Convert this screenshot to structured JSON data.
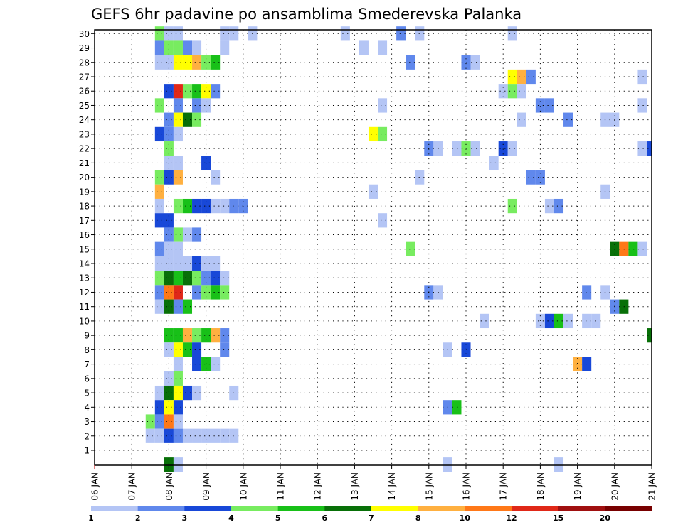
{
  "chart_data": {
    "type": "heatmap",
    "title": "GEFS 6hr padavine po ansamblima Smederevska Palanka",
    "x_tick_labels": [
      "06 JAN",
      "07 JAN",
      "08 JAN",
      "09 JAN",
      "10 JAN",
      "11 JAN",
      "12 JAN",
      "13 JAN",
      "14 JAN",
      "15 JAN",
      "16 JAN",
      "17 JAN",
      "18 JAN",
      "19 JAN",
      "20 JAN",
      "21 JAN"
    ],
    "y_tick_labels": [
      "1",
      "2",
      "3",
      "4",
      "5",
      "6",
      "7",
      "8",
      "9",
      "10",
      "11",
      "12",
      "13",
      "14",
      "15",
      "16",
      "17",
      "18",
      "19",
      "20",
      "21",
      "22",
      "23",
      "24",
      "25",
      "26",
      "27",
      "28",
      "29",
      "30"
    ],
    "ylim": [
      0,
      30
    ],
    "xlim_steps": [
      0,
      60
    ],
    "step_hours": 6,
    "grid": "dotted",
    "colorbar": {
      "labels": [
        "1",
        "2",
        "3",
        "4",
        "5",
        "6",
        "7",
        "8",
        "10",
        "12",
        "15",
        "20"
      ],
      "colors": [
        "#b4c5f5",
        "#6088ec",
        "#1848d8",
        "#78ec60",
        "#18c018",
        "#087008",
        "#ffff00",
        "#ffb040",
        "#ff7818",
        "#e02818",
        "#a01010",
        "#780000"
      ]
    },
    "cells": [
      [
        8,
        30,
        1
      ],
      [
        9,
        30,
        1
      ],
      [
        7,
        30,
        4
      ],
      [
        14,
        30,
        1
      ],
      [
        15,
        30,
        1
      ],
      [
        17,
        30,
        1
      ],
      [
        27,
        30,
        1
      ],
      [
        33,
        30,
        2
      ],
      [
        35,
        30,
        1
      ],
      [
        45,
        30,
        1
      ],
      [
        7,
        29,
        2
      ],
      [
        8,
        29,
        4
      ],
      [
        9,
        29,
        4
      ],
      [
        10,
        29,
        2
      ],
      [
        11,
        29,
        1
      ],
      [
        14,
        29,
        1
      ],
      [
        29,
        29,
        1
      ],
      [
        31,
        29,
        1
      ],
      [
        7,
        28,
        1
      ],
      [
        8,
        28,
        1
      ],
      [
        9,
        28,
        7
      ],
      [
        10,
        28,
        7
      ],
      [
        11,
        28,
        8
      ],
      [
        12,
        28,
        4
      ],
      [
        13,
        28,
        5
      ],
      [
        34,
        28,
        2
      ],
      [
        40,
        28,
        2
      ],
      [
        41,
        28,
        1
      ],
      [
        45,
        27,
        7
      ],
      [
        46,
        27,
        8
      ],
      [
        47,
        27,
        2
      ],
      [
        59,
        27,
        1
      ],
      [
        8,
        26,
        3
      ],
      [
        9,
        26,
        10
      ],
      [
        10,
        26,
        4
      ],
      [
        11,
        26,
        5
      ],
      [
        12,
        26,
        7
      ],
      [
        13,
        26,
        2
      ],
      [
        44,
        26,
        1
      ],
      [
        45,
        26,
        4
      ],
      [
        46,
        26,
        1
      ],
      [
        7,
        25,
        4
      ],
      [
        9,
        25,
        2
      ],
      [
        11,
        25,
        2
      ],
      [
        12,
        25,
        1
      ],
      [
        31,
        25,
        1
      ],
      [
        48,
        25,
        2
      ],
      [
        49,
        25,
        2
      ],
      [
        59,
        25,
        1
      ],
      [
        8,
        24,
        2
      ],
      [
        9,
        24,
        7
      ],
      [
        10,
        24,
        6
      ],
      [
        11,
        24,
        4
      ],
      [
        46,
        24,
        1
      ],
      [
        51,
        24,
        2
      ],
      [
        55,
        24,
        1
      ],
      [
        56,
        24,
        1
      ],
      [
        7,
        23,
        3
      ],
      [
        8,
        23,
        2
      ],
      [
        9,
        23,
        1
      ],
      [
        30,
        23,
        7
      ],
      [
        31,
        23,
        4
      ],
      [
        8,
        22,
        4
      ],
      [
        36,
        22,
        2
      ],
      [
        37,
        22,
        1
      ],
      [
        39,
        22,
        1
      ],
      [
        40,
        22,
        4
      ],
      [
        41,
        22,
        1
      ],
      [
        44,
        22,
        3
      ],
      [
        45,
        22,
        1
      ],
      [
        59,
        22,
        1
      ],
      [
        60,
        22,
        3
      ],
      [
        8,
        21,
        1
      ],
      [
        9,
        21,
        1
      ],
      [
        12,
        21,
        3
      ],
      [
        43,
        21,
        1
      ],
      [
        7,
        20,
        4
      ],
      [
        8,
        20,
        3
      ],
      [
        9,
        20,
        8
      ],
      [
        13,
        20,
        1
      ],
      [
        35,
        20,
        1
      ],
      [
        47,
        20,
        2
      ],
      [
        48,
        20,
        2
      ],
      [
        7,
        19,
        8
      ],
      [
        30,
        19,
        1
      ],
      [
        55,
        19,
        1
      ],
      [
        7,
        18,
        1
      ],
      [
        9,
        18,
        4
      ],
      [
        10,
        18,
        5
      ],
      [
        11,
        18,
        3
      ],
      [
        12,
        18,
        3
      ],
      [
        13,
        18,
        1
      ],
      [
        14,
        18,
        1
      ],
      [
        15,
        18,
        2
      ],
      [
        16,
        18,
        2
      ],
      [
        45,
        18,
        4
      ],
      [
        49,
        18,
        1
      ],
      [
        50,
        18,
        2
      ],
      [
        7,
        17,
        3
      ],
      [
        8,
        17,
        3
      ],
      [
        31,
        17,
        1
      ],
      [
        8,
        16,
        2
      ],
      [
        9,
        16,
        4
      ],
      [
        10,
        16,
        1
      ],
      [
        11,
        16,
        2
      ],
      [
        7,
        15,
        2
      ],
      [
        8,
        15,
        1
      ],
      [
        9,
        15,
        1
      ],
      [
        34,
        15,
        4
      ],
      [
        56,
        15,
        6
      ],
      [
        57,
        15,
        9
      ],
      [
        58,
        15,
        5
      ],
      [
        59,
        15,
        1
      ],
      [
        7,
        14,
        1
      ],
      [
        8,
        14,
        1
      ],
      [
        9,
        14,
        1
      ],
      [
        10,
        14,
        1
      ],
      [
        11,
        14,
        3
      ],
      [
        12,
        14,
        1
      ],
      [
        13,
        14,
        1
      ],
      [
        7,
        13,
        4
      ],
      [
        8,
        13,
        6
      ],
      [
        9,
        13,
        5
      ],
      [
        10,
        13,
        6
      ],
      [
        11,
        13,
        4
      ],
      [
        12,
        13,
        2
      ],
      [
        13,
        13,
        3
      ],
      [
        14,
        13,
        1
      ],
      [
        7,
        12,
        2
      ],
      [
        8,
        12,
        9
      ],
      [
        9,
        12,
        10
      ],
      [
        11,
        12,
        2
      ],
      [
        12,
        12,
        4
      ],
      [
        13,
        12,
        5
      ],
      [
        14,
        12,
        4
      ],
      [
        36,
        12,
        2
      ],
      [
        37,
        12,
        1
      ],
      [
        53,
        12,
        2
      ],
      [
        55,
        12,
        1
      ],
      [
        7,
        11,
        1
      ],
      [
        8,
        11,
        6
      ],
      [
        9,
        11,
        2
      ],
      [
        10,
        11,
        5
      ],
      [
        56,
        11,
        2
      ],
      [
        57,
        11,
        6
      ],
      [
        42,
        10,
        1
      ],
      [
        48,
        10,
        1
      ],
      [
        49,
        10,
        3
      ],
      [
        50,
        10,
        5
      ],
      [
        51,
        10,
        1
      ],
      [
        53,
        10,
        1
      ],
      [
        54,
        10,
        1
      ],
      [
        8,
        9,
        5
      ],
      [
        9,
        9,
        5
      ],
      [
        10,
        9,
        8
      ],
      [
        11,
        9,
        4
      ],
      [
        12,
        9,
        5
      ],
      [
        13,
        9,
        8
      ],
      [
        14,
        9,
        2
      ],
      [
        60,
        9,
        6
      ],
      [
        8,
        8,
        1
      ],
      [
        9,
        8,
        7
      ],
      [
        10,
        8,
        5
      ],
      [
        11,
        8,
        3
      ],
      [
        14,
        8,
        2
      ],
      [
        38,
        8,
        1
      ],
      [
        40,
        8,
        3
      ],
      [
        9,
        7,
        1
      ],
      [
        11,
        7,
        3
      ],
      [
        12,
        7,
        5
      ],
      [
        13,
        7,
        1
      ],
      [
        52,
        7,
        8
      ],
      [
        53,
        7,
        3
      ],
      [
        8,
        6,
        1
      ],
      [
        9,
        6,
        4
      ],
      [
        7,
        5,
        1
      ],
      [
        8,
        5,
        6
      ],
      [
        9,
        5,
        7
      ],
      [
        10,
        5,
        3
      ],
      [
        11,
        5,
        1
      ],
      [
        15,
        5,
        1
      ],
      [
        7,
        4,
        3
      ],
      [
        8,
        4,
        7
      ],
      [
        9,
        4,
        3
      ],
      [
        38,
        4,
        2
      ],
      [
        39,
        4,
        5
      ],
      [
        6,
        3,
        4
      ],
      [
        7,
        3,
        2
      ],
      [
        8,
        3,
        9
      ],
      [
        9,
        3,
        1
      ],
      [
        6,
        2,
        1
      ],
      [
        7,
        2,
        1
      ],
      [
        8,
        2,
        3
      ],
      [
        9,
        2,
        2
      ],
      [
        10,
        2,
        1
      ],
      [
        11,
        2,
        1
      ],
      [
        12,
        2,
        1
      ],
      [
        13,
        2,
        1
      ],
      [
        14,
        2,
        1
      ],
      [
        15,
        2,
        1
      ],
      [
        8,
        0,
        6
      ],
      [
        9,
        0,
        1
      ],
      [
        38,
        0,
        1
      ],
      [
        50,
        0,
        1
      ]
    ]
  }
}
